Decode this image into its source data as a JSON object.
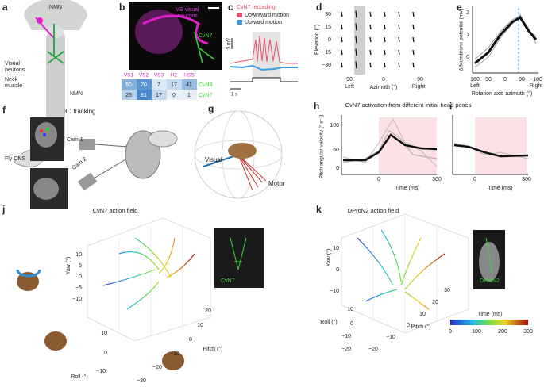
{
  "panels": {
    "a": {
      "label": "a",
      "nmn_top": "NMN",
      "visual_neurons": [
        "Visual",
        "neurons"
      ],
      "neck_muscle": [
        "Neck",
        "muscle"
      ],
      "nmn": "NMN",
      "fly_cns": "Fly CNS"
    },
    "b": {
      "label": "b",
      "image_label": [
        "VS visual",
        "neurons"
      ],
      "cell_label": "CvN7",
      "table": {
        "header": [
          "VS1",
          "VS2",
          "VS3",
          "H2",
          "HSS"
        ],
        "rows": [
          {
            "values": [
              50,
              70,
              7,
              17,
              41
            ],
            "name": "CvN8"
          },
          {
            "values": [
              25,
              81,
              17,
              0,
              1
            ],
            "name": "CvN7"
          }
        ]
      }
    },
    "c": {
      "label": "c",
      "title": "CvN7 recording",
      "legend": [
        "Downward motion",
        "Upward motion"
      ],
      "scale_y": "5 mV",
      "scale_x": "1 s"
    },
    "d": {
      "label": "d",
      "ylabel": "Elevation (°)",
      "yticks": [
        "30",
        "15",
        "0",
        "−15",
        "−30"
      ],
      "xticks": [
        "90",
        "0",
        "−90"
      ],
      "left": "Left",
      "xlabel": "Azimuth (°)",
      "right": "Right"
    },
    "e": {
      "label": "e",
      "ylabel": "Δ Membrane potential (mV)",
      "yticks": [
        "2",
        "1",
        "0"
      ],
      "xticks": [
        "180",
        "90",
        "0",
        "−90",
        "−180"
      ],
      "left": "Left",
      "right": "Right",
      "xlabel": "Rotation axis azimuth (°)"
    },
    "f": {
      "label": "f",
      "title": "3D tracking",
      "cam1": "Cam 1",
      "cam2": "Cam 2"
    },
    "g": {
      "label": "g",
      "visual": "Visual",
      "motor": "Motor"
    },
    "h": {
      "label": "h",
      "title": "CvN7 activation from different initial head poses",
      "ylabel": "Pitch angular velocity (° s⁻¹)",
      "yticks": [
        "100",
        "50",
        "0"
      ],
      "xticks": [
        "0",
        "300"
      ],
      "xlabel": "Time (ms)"
    },
    "i": {
      "label": "i",
      "xticks": [
        "0",
        "300"
      ],
      "xlabel": "Time (ms)"
    },
    "j": {
      "label": "j",
      "title": "CvN7 action field",
      "yaw": "Yaw (°)",
      "yaw_ticks": [
        "10",
        "5",
        "0",
        "−5",
        "−10"
      ],
      "roll": "Roll (°)",
      "roll_ticks": [
        "10",
        "0",
        "−10"
      ],
      "pitch": "Pitch (°)",
      "pitch_ticks": [
        "−30",
        "−20",
        "−10",
        "0",
        "10",
        "20"
      ],
      "image_label": "CvN7"
    },
    "k": {
      "label": "k",
      "title": "DProN2 action field",
      "yaw": "Yaw (°)",
      "yaw_ticks": [
        "10",
        "0",
        "−10"
      ],
      "roll": "Roll (°)",
      "roll_ticks": [
        "10",
        "0",
        "−10",
        "−20"
      ],
      "pitch": "Pitch (°)",
      "pitch_ticks": [
        "−20",
        "−10",
        "0",
        "10",
        "20",
        "30"
      ],
      "image_label": "DProN2",
      "colorbar_title": "Time (ms)",
      "colorbar_ticks": [
        "0",
        "100",
        "200",
        "300"
      ]
    }
  }
}
